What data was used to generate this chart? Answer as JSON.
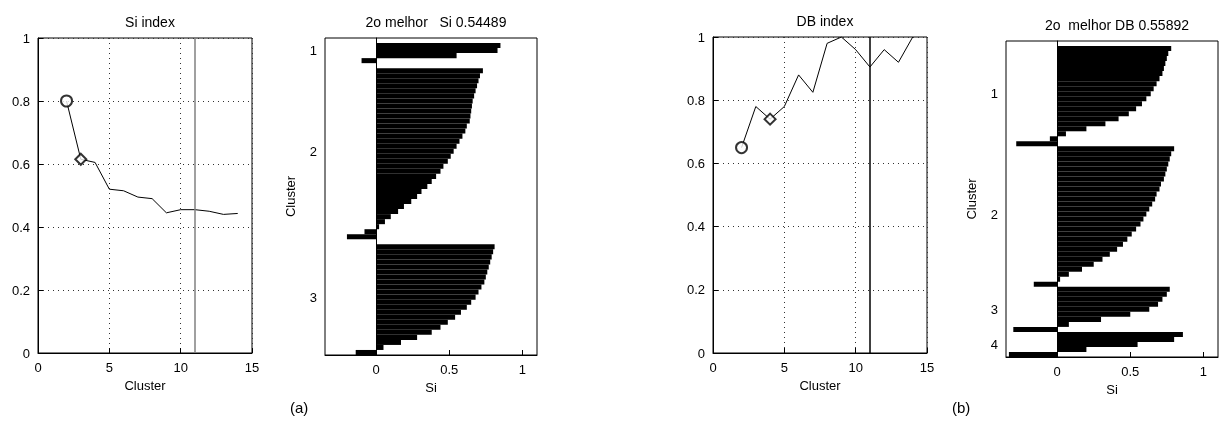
{
  "chart_data": [
    {
      "type": "line",
      "title": "Si index",
      "xlabel": "Cluster",
      "x": [
        2,
        3,
        4,
        5,
        6,
        7,
        8,
        9,
        10,
        11,
        12,
        13,
        14
      ],
      "marker": "none",
      "grid": true,
      "xlim": [
        0,
        15
      ],
      "xticks": [
        0,
        5,
        10,
        15
      ],
      "ylim": [
        0,
        1
      ],
      "yticks": [
        0,
        0.2,
        0.4,
        0.6,
        0.8,
        1
      ],
      "series": [
        {
          "color": "#000000",
          "values": [
            0.8,
            0.615,
            0.605,
            0.52,
            0.515,
            0.495,
            0.49,
            0.445,
            0.455,
            0.455,
            0.45,
            0.44,
            0.443
          ]
        },
        {
          "type": "scatter",
          "marker": "circle",
          "color": "#000000",
          "x": [
            2
          ],
          "values": [
            0.8
          ]
        },
        {
          "type": "scatter",
          "marker": "diamond",
          "color": "#000000",
          "x": [
            3
          ],
          "values": [
            0.615
          ]
        }
      ],
      "ref_lines": [
        {
          "axis": "x",
          "value": 11,
          "color": "#808080"
        }
      ]
    },
    {
      "type": "bar",
      "orientation": "horizontal",
      "title": "2o melhor   Si 0.54489",
      "xlabel": "Si",
      "ylabel": "Cluster",
      "color": "#000000",
      "xlim": [
        -0.35,
        1.1
      ],
      "xticks": [
        0,
        0.5,
        1
      ],
      "annotations": [
        "(a)"
      ],
      "categories": [
        null,
        null,
        "1",
        null,
        null,
        null,
        null,
        null,
        null,
        null,
        null,
        null,
        null,
        null,
        null,
        null,
        null,
        null,
        null,
        null,
        null,
        null,
        "2",
        null,
        null,
        null,
        null,
        null,
        null,
        null,
        null,
        null,
        null,
        null,
        null,
        null,
        null,
        null,
        null,
        null,
        null,
        null,
        null,
        null,
        null,
        null,
        null,
        null,
        null,
        null,
        null,
        "3",
        null,
        null,
        null,
        null,
        null,
        null,
        null,
        null,
        null,
        null,
        null
      ],
      "values": [
        null,
        0.85,
        0.83,
        0.55,
        -0.1,
        null,
        0.73,
        0.71,
        0.7,
        0.69,
        0.68,
        0.67,
        0.66,
        0.655,
        0.65,
        0.645,
        0.64,
        0.62,
        0.61,
        0.59,
        0.57,
        0.55,
        0.53,
        0.51,
        0.49,
        0.46,
        0.44,
        0.41,
        0.38,
        0.35,
        0.31,
        0.28,
        0.24,
        0.19,
        0.15,
        0.1,
        0.06,
        0.02,
        -0.08,
        -0.2,
        null,
        0.81,
        0.8,
        0.79,
        0.78,
        0.77,
        0.76,
        0.75,
        0.74,
        0.72,
        0.7,
        0.68,
        0.65,
        0.62,
        0.58,
        0.54,
        0.49,
        0.44,
        0.38,
        0.28,
        0.17,
        0.05,
        -0.14
      ]
    },
    {
      "type": "line",
      "title": "DB index",
      "xlabel": "Cluster",
      "x": [
        2,
        3,
        4,
        5,
        6,
        7,
        8,
        9,
        10,
        11,
        12,
        13,
        14
      ],
      "marker": "none",
      "grid": true,
      "xlim": [
        0,
        15
      ],
      "xticks": [
        0,
        5,
        10,
        15
      ],
      "ylim": [
        0,
        1
      ],
      "yticks": [
        0,
        0.2,
        0.4,
        0.6,
        0.8,
        1
      ],
      "series": [
        {
          "color": "#000000",
          "values": [
            0.65,
            0.78,
            0.74,
            0.78,
            0.88,
            0.825,
            0.98,
            1.0,
            0.96,
            0.905,
            0.96,
            0.92,
            1.0
          ]
        },
        {
          "type": "scatter",
          "marker": "circle",
          "color": "#000000",
          "x": [
            2
          ],
          "values": [
            0.65
          ]
        },
        {
          "type": "scatter",
          "marker": "diamond",
          "color": "#000000",
          "x": [
            4
          ],
          "values": [
            0.74
          ]
        }
      ],
      "ref_lines": [
        {
          "axis": "x",
          "value": 11,
          "color": "#000000"
        }
      ]
    },
    {
      "type": "bar",
      "orientation": "horizontal",
      "title": "2o  melhor DB 0.55892",
      "xlabel": "Si",
      "ylabel": "Cluster",
      "color": "#000000",
      "xlim": [
        -0.35,
        1.1
      ],
      "xticks": [
        0,
        0.5,
        1
      ],
      "annotations": [
        "(b)"
      ],
      "categories": [
        null,
        null,
        null,
        null,
        null,
        null,
        null,
        null,
        null,
        null,
        "1",
        null,
        null,
        null,
        null,
        null,
        null,
        null,
        null,
        null,
        null,
        null,
        null,
        null,
        null,
        null,
        null,
        null,
        null,
        null,
        null,
        null,
        null,
        null,
        "2",
        null,
        null,
        null,
        null,
        null,
        null,
        null,
        null,
        null,
        null,
        null,
        null,
        null,
        null,
        null,
        null,
        null,
        null,
        "3",
        null,
        null,
        null,
        null,
        null,
        null,
        "4",
        null,
        null
      ],
      "values": [
        null,
        0.78,
        0.76,
        0.75,
        0.74,
        0.73,
        0.72,
        0.7,
        0.68,
        0.66,
        0.64,
        0.61,
        0.58,
        0.54,
        0.49,
        0.42,
        0.33,
        0.2,
        0.06,
        -0.05,
        -0.28,
        0.8,
        0.78,
        0.77,
        0.76,
        0.75,
        0.74,
        0.73,
        0.71,
        0.7,
        0.68,
        0.67,
        0.65,
        0.63,
        0.61,
        0.59,
        0.57,
        0.54,
        0.51,
        0.48,
        0.45,
        0.41,
        0.36,
        0.31,
        0.25,
        0.17,
        0.08,
        0.02,
        -0.16,
        0.77,
        0.75,
        0.72,
        0.69,
        0.63,
        0.5,
        0.3,
        0.08,
        -0.3,
        0.86,
        0.8,
        0.55,
        0.2,
        -0.33
      ]
    }
  ]
}
